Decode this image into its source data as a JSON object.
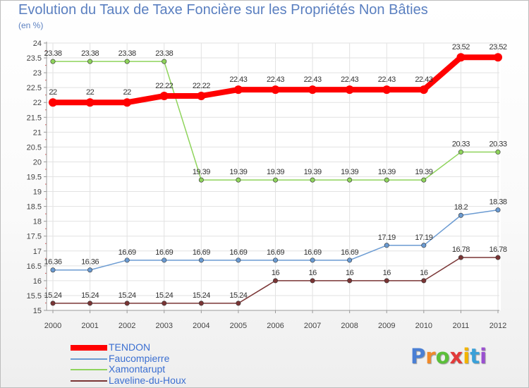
{
  "chart_data": {
    "type": "line",
    "title": "Evolution du Taux de Taxe Foncière sur les Propriétés Non Bâties",
    "subtitle": "(en %)",
    "x": [
      "2000",
      "2001",
      "2002",
      "2003",
      "2004",
      "2005",
      "2006",
      "2007",
      "2008",
      "2009",
      "2010",
      "2011",
      "2012"
    ],
    "ylim": [
      15,
      24
    ],
    "yticks": [
      "15",
      "15.5",
      "16",
      "16.5",
      "17",
      "17.5",
      "18",
      "18.5",
      "19",
      "19.5",
      "20",
      "20.5",
      "21",
      "21.5",
      "22",
      "22.5",
      "23",
      "23.5",
      "24"
    ],
    "grid": true,
    "legend_position": "bottom-left",
    "series": [
      {
        "name": "TENDON",
        "color": "#ff0000",
        "values": [
          22,
          22,
          22,
          22.22,
          22.22,
          22.43,
          22.43,
          22.43,
          22.43,
          22.43,
          22.43,
          23.52,
          23.52
        ],
        "labels": [
          "22",
          "22",
          "22",
          "22.22",
          "22.22",
          "22.43",
          "22.43",
          "22.43",
          "22.43",
          "22.43",
          "22.43",
          "23.52",
          "23.52"
        ]
      },
      {
        "name": "Faucompierre",
        "color": "#6b9bd2",
        "values": [
          16.36,
          16.36,
          16.69,
          16.69,
          16.69,
          16.69,
          16.69,
          16.69,
          16.69,
          17.19,
          17.19,
          18.2,
          18.38
        ],
        "labels": [
          "16.36",
          "16.36",
          "16.69",
          "16.69",
          "16.69",
          "16.69",
          "16.69",
          "16.69",
          "16.69",
          "17.19",
          "17.19",
          "18.2",
          "18.38"
        ]
      },
      {
        "name": "Xamontarupt",
        "color": "#8fd45c",
        "values": [
          23.38,
          23.38,
          23.38,
          23.38,
          19.39,
          19.39,
          19.39,
          19.39,
          19.39,
          19.39,
          19.39,
          20.33,
          20.33
        ],
        "labels": [
          "23.38",
          "23.38",
          "23.38",
          "23.38",
          "19.39",
          "19.39",
          "19.39",
          "19.39",
          "19.39",
          "19.39",
          "19.39",
          "20.33",
          "20.33"
        ]
      },
      {
        "name": "Laveline-du-Houx",
        "color": "#7a3535",
        "values": [
          15.24,
          15.24,
          15.24,
          15.24,
          15.24,
          15.24,
          16,
          16,
          16,
          16,
          16,
          16.78,
          16.78
        ],
        "labels": [
          "15.24",
          "15.24",
          "15.24",
          "15.24",
          "15.24",
          "15.24",
          "16",
          "16",
          "16",
          "16",
          "16",
          "16.78",
          "16.78"
        ]
      }
    ]
  },
  "logo": {
    "letters": [
      "P",
      "r",
      "o",
      "x",
      "i",
      "t",
      "i"
    ],
    "colors": [
      "#4a7fd4",
      "#f08a2a",
      "#5bbf3a",
      "#e23a3a",
      "#f2b400",
      "#3aa0d8",
      "#9a4fd0"
    ]
  }
}
